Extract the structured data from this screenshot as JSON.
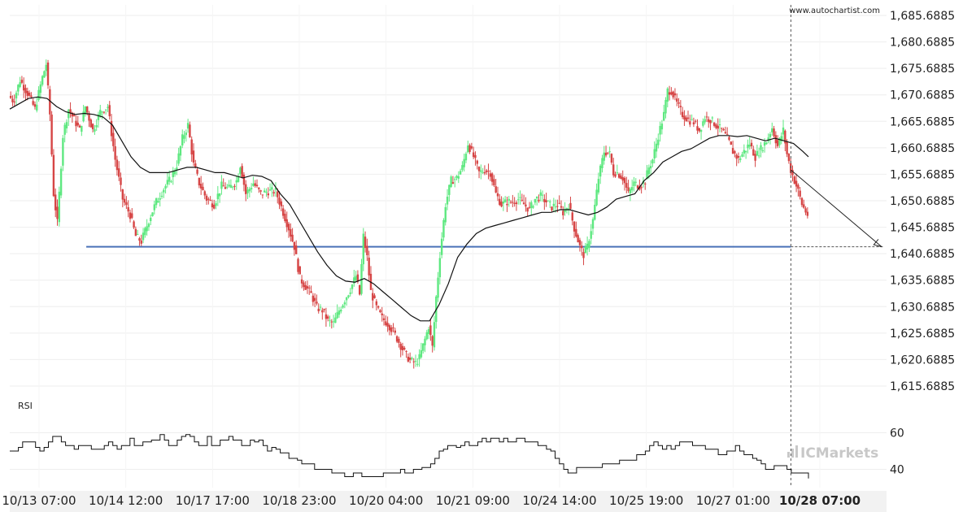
{
  "source_label": "www.autochartist.com",
  "brand": "ICMarkets",
  "rsi_label": "RSI",
  "colors": {
    "bull": "#5ee880",
    "bear": "#d64545",
    "support": "#4a72b8",
    "ma": "#111111",
    "grid": "#eeeeee",
    "axis_bg": "#f2f2f2"
  },
  "chart_data": [
    {
      "type": "candlestick",
      "title": "",
      "ylim": [
        1613.6885,
        1687.6885
      ],
      "y_ticks": [
        "1,685.6885",
        "1,680.6885",
        "1,675.6885",
        "1,670.6885",
        "1,665.6885",
        "1,660.6885",
        "1,655.6885",
        "1,650.6885",
        "1,645.6885",
        "1,640.6885",
        "1,635.6885",
        "1,630.6885",
        "1,625.6885",
        "1,620.6885",
        "1,615.6885"
      ],
      "y_tick_values": [
        1685.6885,
        1680.6885,
        1675.6885,
        1670.6885,
        1665.6885,
        1660.6885,
        1655.6885,
        1650.6885,
        1645.6885,
        1640.6885,
        1635.6885,
        1630.6885,
        1625.6885,
        1620.6885,
        1615.6885
      ],
      "x_ticks": [
        "10/13 07:00",
        "10/14 12:00",
        "10/17 17:00",
        "10/18 23:00",
        "10/20 04:00",
        "10/21 09:00",
        "10/24 14:00",
        "10/25 19:00",
        "10/27 01:00",
        "10/28 07:00"
      ],
      "x_tick_emphasis": "10/28 07:00",
      "price_path": [
        [
          0,
          1670.5
        ],
        [
          5,
          1669.5
        ],
        [
          12,
          1673.5
        ],
        [
          20,
          1671.0
        ],
        [
          28,
          1668.0
        ],
        [
          36,
          1674.0
        ],
        [
          40,
          1676.5
        ],
        [
          44,
          1667.0
        ],
        [
          48,
          1652.0
        ],
        [
          52,
          1646.5
        ],
        [
          58,
          1663.0
        ],
        [
          64,
          1668.0
        ],
        [
          70,
          1666.0
        ],
        [
          76,
          1664.0
        ],
        [
          82,
          1668.5
        ],
        [
          90,
          1664.0
        ],
        [
          98,
          1667.5
        ],
        [
          106,
          1668.5
        ],
        [
          114,
          1658.5
        ],
        [
          122,
          1651.0
        ],
        [
          130,
          1648.0
        ],
        [
          136,
          1644.0
        ],
        [
          142,
          1643.0
        ],
        [
          150,
          1647.0
        ],
        [
          158,
          1650.5
        ],
        [
          166,
          1653.0
        ],
        [
          174,
          1655.0
        ],
        [
          180,
          1657.5
        ],
        [
          186,
          1662.5
        ],
        [
          192,
          1665.0
        ],
        [
          198,
          1657.5
        ],
        [
          204,
          1654.0
        ],
        [
          212,
          1651.0
        ],
        [
          220,
          1650.0
        ],
        [
          228,
          1653.5
        ],
        [
          236,
          1653.0
        ],
        [
          244,
          1654.5
        ],
        [
          248,
          1657.5
        ],
        [
          254,
          1652.0
        ],
        [
          262,
          1654.0
        ],
        [
          270,
          1652.0
        ],
        [
          278,
          1652.5
        ],
        [
          286,
          1652.5
        ],
        [
          294,
          1648.5
        ],
        [
          300,
          1645.5
        ],
        [
          306,
          1642.0
        ],
        [
          312,
          1636.0
        ],
        [
          318,
          1634.5
        ],
        [
          324,
          1633.0
        ],
        [
          330,
          1630.5
        ],
        [
          336,
          1630.0
        ],
        [
          342,
          1628.0
        ],
        [
          348,
          1627.5
        ],
        [
          354,
          1630.0
        ],
        [
          360,
          1632.0
        ],
        [
          366,
          1634.0
        ],
        [
          372,
          1636.5
        ],
        [
          376,
          1633.0
        ],
        [
          380,
          1644.0
        ],
        [
          384,
          1640.0
        ],
        [
          388,
          1633.5
        ],
        [
          394,
          1630.5
        ],
        [
          400,
          1628.5
        ],
        [
          406,
          1627.5
        ],
        [
          412,
          1626.0
        ],
        [
          418,
          1624.0
        ],
        [
          424,
          1622.0
        ],
        [
          430,
          1620.5
        ],
        [
          436,
          1620.0
        ],
        [
          440,
          1621.0
        ],
        [
          446,
          1624.5
        ],
        [
          450,
          1627.0
        ],
        [
          454,
          1623.0
        ],
        [
          458,
          1632.5
        ],
        [
          462,
          1640.5
        ],
        [
          468,
          1650.0
        ],
        [
          474,
          1654.5
        ],
        [
          480,
          1655.0
        ],
        [
          486,
          1657.0
        ],
        [
          492,
          1661.5
        ],
        [
          498,
          1659.0
        ],
        [
          504,
          1656.0
        ],
        [
          510,
          1656.5
        ],
        [
          516,
          1656.0
        ],
        [
          522,
          1652.0
        ],
        [
          528,
          1650.0
        ],
        [
          534,
          1650.5
        ],
        [
          540,
          1650.5
        ],
        [
          546,
          1651.0
        ],
        [
          552,
          1650.0
        ],
        [
          558,
          1649.0
        ],
        [
          564,
          1651.0
        ],
        [
          570,
          1651.5
        ],
        [
          576,
          1650.5
        ],
        [
          582,
          1649.5
        ],
        [
          588,
          1650.0
        ],
        [
          594,
          1648.5
        ],
        [
          600,
          1650.0
        ],
        [
          606,
          1645.5
        ],
        [
          612,
          1642.0
        ],
        [
          616,
          1640.5
        ],
        [
          620,
          1642.0
        ],
        [
          626,
          1647.0
        ],
        [
          632,
          1655.0
        ],
        [
          638,
          1660.0
        ],
        [
          644,
          1659.5
        ],
        [
          648,
          1656.0
        ],
        [
          652,
          1656.0
        ],
        [
          658,
          1655.0
        ],
        [
          664,
          1652.0
        ],
        [
          670,
          1654.0
        ],
        [
          676,
          1653.5
        ],
        [
          682,
          1654.5
        ],
        [
          686,
          1657.0
        ],
        [
          690,
          1658.5
        ],
        [
          696,
          1663.0
        ],
        [
          702,
          1667.0
        ],
        [
          706,
          1671.5
        ],
        [
          710,
          1671.5
        ],
        [
          716,
          1669.0
        ],
        [
          722,
          1667.0
        ],
        [
          728,
          1666.0
        ],
        [
          734,
          1665.5
        ],
        [
          740,
          1664.0
        ],
        [
          746,
          1666.5
        ],
        [
          752,
          1666.0
        ],
        [
          758,
          1665.0
        ],
        [
          764,
          1664.0
        ],
        [
          770,
          1662.5
        ],
        [
          776,
          1660.0
        ],
        [
          782,
          1658.5
        ],
        [
          788,
          1660.0
        ],
        [
          794,
          1661.5
        ],
        [
          800,
          1659.0
        ],
        [
          806,
          1660.5
        ],
        [
          812,
          1662.0
        ],
        [
          818,
          1664.5
        ],
        [
          824,
          1661.0
        ],
        [
          830,
          1664.0
        ],
        [
          834,
          1659.5
        ],
        [
          838,
          1656.5
        ],
        [
          842,
          1654.5
        ],
        [
          846,
          1652.5
        ],
        [
          850,
          1650.0
        ],
        [
          856,
          1648.0
        ]
      ],
      "moving_average": [
        [
          0,
          1668.0
        ],
        [
          10,
          1669.0
        ],
        [
          20,
          1670.0
        ],
        [
          30,
          1670.3
        ],
        [
          40,
          1670.0
        ],
        [
          50,
          1668.5
        ],
        [
          60,
          1667.5
        ],
        [
          70,
          1667.0
        ],
        [
          80,
          1667.2
        ],
        [
          90,
          1667.0
        ],
        [
          100,
          1666.5
        ],
        [
          110,
          1665.0
        ],
        [
          120,
          1662.0
        ],
        [
          130,
          1659.0
        ],
        [
          140,
          1657.0
        ],
        [
          150,
          1656.0
        ],
        [
          160,
          1656.0
        ],
        [
          170,
          1656.0
        ],
        [
          180,
          1656.5
        ],
        [
          190,
          1657.0
        ],
        [
          200,
          1657.0
        ],
        [
          210,
          1656.5
        ],
        [
          220,
          1656.0
        ],
        [
          230,
          1656.0
        ],
        [
          240,
          1655.5
        ],
        [
          250,
          1655.0
        ],
        [
          260,
          1655.5
        ],
        [
          270,
          1655.3
        ],
        [
          280,
          1654.5
        ],
        [
          290,
          1652.0
        ],
        [
          300,
          1650.0
        ],
        [
          310,
          1647.0
        ],
        [
          320,
          1644.0
        ],
        [
          330,
          1641.0
        ],
        [
          340,
          1638.5
        ],
        [
          350,
          1636.5
        ],
        [
          360,
          1635.5
        ],
        [
          370,
          1635.3
        ],
        [
          380,
          1636.0
        ],
        [
          390,
          1635.0
        ],
        [
          400,
          1633.5
        ],
        [
          410,
          1632.0
        ],
        [
          420,
          1630.5
        ],
        [
          430,
          1629.0
        ],
        [
          440,
          1628.0
        ],
        [
          450,
          1628.0
        ],
        [
          460,
          1631.0
        ],
        [
          470,
          1635.0
        ],
        [
          480,
          1640.0
        ],
        [
          490,
          1642.5
        ],
        [
          500,
          1644.5
        ],
        [
          510,
          1645.5
        ],
        [
          520,
          1646.0
        ],
        [
          530,
          1646.5
        ],
        [
          540,
          1647.0
        ],
        [
          550,
          1647.5
        ],
        [
          560,
          1648.0
        ],
        [
          570,
          1648.5
        ],
        [
          580,
          1648.5
        ],
        [
          590,
          1649.0
        ],
        [
          600,
          1649.0
        ],
        [
          610,
          1648.5
        ],
        [
          620,
          1648.0
        ],
        [
          630,
          1648.5
        ],
        [
          640,
          1649.5
        ],
        [
          650,
          1651.0
        ],
        [
          660,
          1651.5
        ],
        [
          670,
          1652.0
        ],
        [
          680,
          1654.5
        ],
        [
          690,
          1656.0
        ],
        [
          700,
          1658.0
        ],
        [
          710,
          1659.0
        ],
        [
          720,
          1660.0
        ],
        [
          730,
          1660.5
        ],
        [
          740,
          1661.5
        ],
        [
          750,
          1662.5
        ],
        [
          760,
          1663.0
        ],
        [
          770,
          1663.0
        ],
        [
          780,
          1662.8
        ],
        [
          790,
          1663.0
        ],
        [
          800,
          1662.5
        ],
        [
          810,
          1662.0
        ],
        [
          820,
          1662.5
        ],
        [
          830,
          1662.0
        ],
        [
          840,
          1661.5
        ],
        [
          850,
          1660.0
        ],
        [
          856,
          1659.0
        ]
      ],
      "support_level": 1642.0,
      "support_x_range": [
        82,
        1086
      ],
      "forecast": {
        "from_y": 1656.5,
        "to_y": 1642.0
      },
      "current_time_x": 978
    },
    {
      "type": "line",
      "title": "RSI",
      "ylim": [
        30,
        70
      ],
      "y_ticks": [
        "60",
        "40"
      ],
      "y_tick_values": [
        60,
        40
      ],
      "values": [
        50,
        50,
        52,
        55,
        55,
        55,
        52,
        50,
        52,
        55,
        58,
        58,
        55,
        53,
        53,
        51,
        53,
        53,
        53,
        51,
        51,
        51,
        53,
        55,
        53,
        51,
        53,
        53,
        57,
        53,
        53,
        55,
        55,
        56,
        56,
        59,
        56,
        53,
        53,
        56,
        58,
        59,
        58,
        55,
        53,
        53,
        58,
        53,
        53,
        56,
        56,
        58,
        56,
        56,
        53,
        53,
        56,
        55,
        56,
        53,
        50,
        52,
        51,
        49,
        49,
        46,
        46,
        45,
        43,
        43,
        43,
        40,
        40,
        40,
        40,
        38,
        38,
        38,
        36,
        36,
        38,
        38,
        36,
        36,
        36,
        36,
        36,
        38,
        38,
        38,
        38,
        40,
        38,
        38,
        40,
        40,
        41,
        41,
        43,
        46,
        50,
        51,
        53,
        53,
        52,
        53,
        55,
        53,
        53,
        55,
        57,
        55,
        57,
        57,
        55,
        57,
        55,
        55,
        57,
        57,
        55,
        55,
        55,
        53,
        53,
        51,
        50,
        46,
        43,
        40,
        38,
        38,
        41,
        41,
        41,
        41,
        41,
        41,
        43,
        43,
        43,
        43,
        45,
        45,
        45,
        45,
        48,
        48,
        50,
        53,
        55,
        53,
        51,
        53,
        51,
        53,
        55,
        55,
        55,
        53,
        53,
        53,
        51,
        51,
        51,
        48,
        48,
        50,
        50,
        53,
        50,
        48,
        48,
        46,
        45,
        43,
        40,
        40,
        42,
        42,
        42,
        40,
        38,
        38,
        38,
        38,
        35
      ]
    }
  ]
}
